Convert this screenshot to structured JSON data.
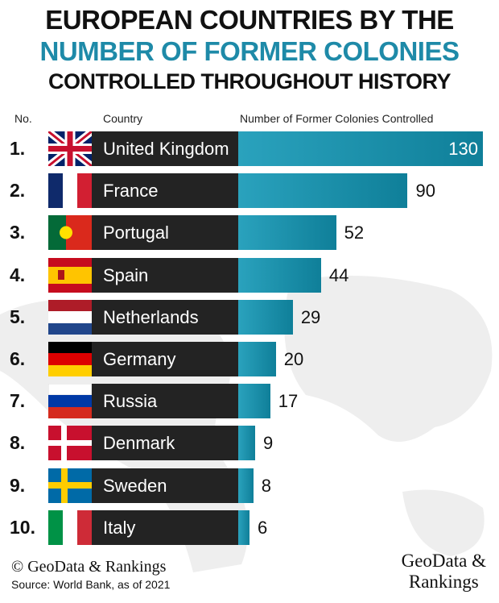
{
  "title_line1": "EUROPEAN COUNTRIES BY THE",
  "title_line2": "NUMBER OF FORMER COLONIES",
  "title_line3": "CONTROLLED THROUGHOUT HISTORY",
  "colors": {
    "accent": "#1e8aa8",
    "bar": "#1a93ad",
    "label_box": "#232323"
  },
  "chart_data": {
    "type": "bar",
    "orientation": "horizontal",
    "headers": {
      "rank": "No.",
      "country": "Country",
      "value": "Number of Former Colonies Controlled"
    },
    "ranks": [
      "1.",
      "2.",
      "3.",
      "4.",
      "5.",
      "6.",
      "7.",
      "8.",
      "9.",
      "10."
    ],
    "categories": [
      "United Kingdom",
      "France",
      "Portugal",
      "Spain",
      "Netherlands",
      "Germany",
      "Russia",
      "Denmark",
      "Sweden",
      "Italy"
    ],
    "flags": [
      "uk-flag",
      "france-flag",
      "portugal-flag",
      "spain-flag",
      "netherlands-flag",
      "germany-flag",
      "russia-flag",
      "denmark-flag",
      "sweden-flag",
      "italy-flag"
    ],
    "values": [
      130,
      90,
      52,
      44,
      29,
      20,
      17,
      9,
      8,
      6
    ],
    "xlim": [
      0,
      130
    ],
    "grid": false
  },
  "footer": {
    "copyright": "© GeoData & Rankings",
    "source": "Source: World Bank, as of 2021"
  },
  "logo": {
    "line1": "GeoData &",
    "line2": "Rankings"
  }
}
